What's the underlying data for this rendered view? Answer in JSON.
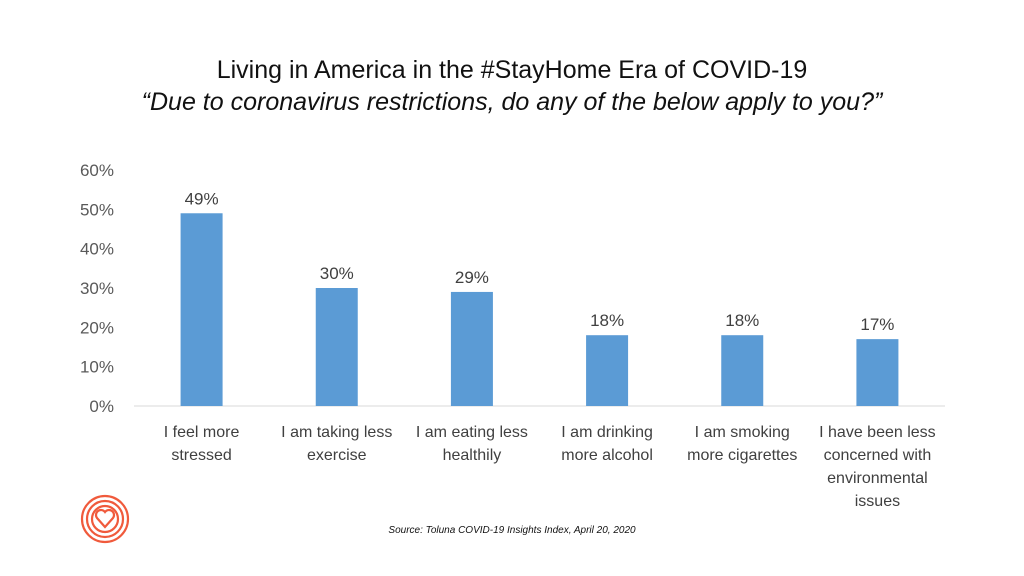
{
  "chart_data": {
    "type": "bar",
    "title": "Living in America in the #StayHome  Era of COVID-19",
    "subtitle": "“Due to coronavirus restrictions, do any of the below apply to you?”",
    "categories": [
      [
        "I feel more",
        "stressed"
      ],
      [
        "I am taking less",
        "exercise"
      ],
      [
        "I am eating less",
        "healthily"
      ],
      [
        "I am drinking",
        "more alcohol"
      ],
      [
        "I am smoking",
        "more cigarettes"
      ],
      [
        "I have been less",
        "concerned with",
        "environmental",
        "issues"
      ]
    ],
    "values": [
      49,
      30,
      29,
      18,
      18,
      17
    ],
    "data_labels": [
      "49%",
      "30%",
      "29%",
      "18%",
      "18%",
      "17%"
    ],
    "ylim": [
      0,
      60
    ],
    "yticks": [
      "0%",
      "10%",
      "20%",
      "30%",
      "40%",
      "50%",
      "60%"
    ],
    "xlabel": "",
    "ylabel": "",
    "grid": false,
    "bar_color": "#5b9bd5"
  },
  "source": "Source: Toluna COVID-19 Insights Index, April 20, 2020",
  "logo_color": "#f05a3c"
}
